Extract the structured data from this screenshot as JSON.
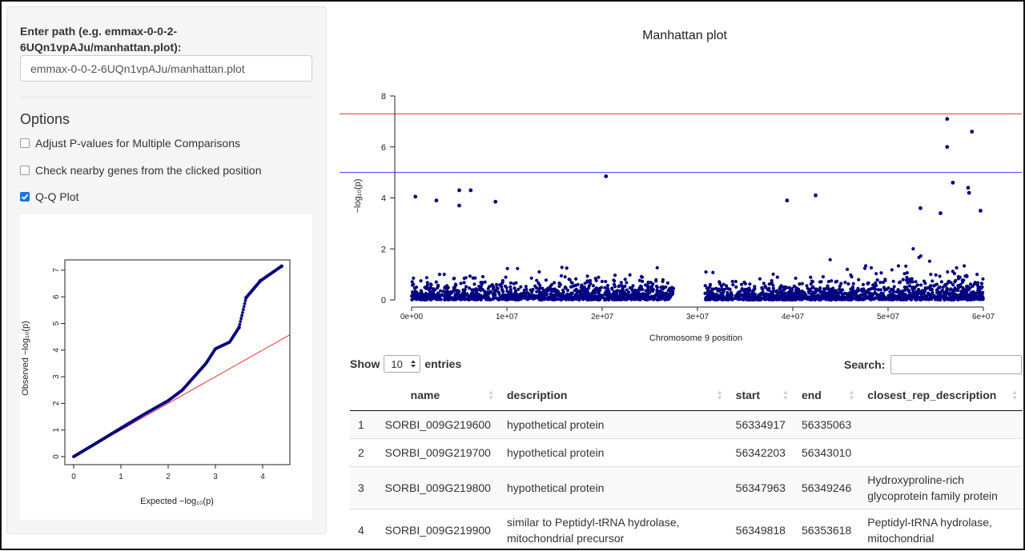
{
  "sidebar": {
    "path_label": "Enter path (e.g. emmax-0-0-2-6UQn1vpAJu/manhattan.plot):",
    "path_value": "emmax-0-0-2-6UQn1vpAJu/manhattan.plot",
    "options_title": "Options",
    "options": [
      {
        "label": "Adjust P-values for Multiple Comparisons",
        "checked": false
      },
      {
        "label": "Check nearby genes from the clicked position",
        "checked": false
      },
      {
        "label": "Q-Q Plot",
        "checked": true
      }
    ]
  },
  "qq_plot": {
    "xlabel": "Expected  −log₁₀(p)",
    "ylabel": "Observed  −log₁₀(p)",
    "x_ticks": [
      "0",
      "1",
      "2",
      "3",
      "4"
    ],
    "y_ticks": [
      "0",
      "1",
      "2",
      "3",
      "4",
      "5",
      "6",
      "7"
    ],
    "line_color": "#e3342f",
    "point_color": "#000080"
  },
  "manhattan": {
    "title": "Manhattan plot",
    "xlabel": "Chromosome 9 position",
    "ylabel": "−log₁₀(p)",
    "x_ticks": [
      "0e+00",
      "1e+07",
      "2e+07",
      "3e+07",
      "4e+07",
      "5e+07",
      "6e+07"
    ],
    "y_ticks": [
      "0",
      "2",
      "4",
      "6",
      "8"
    ],
    "thresholds": [
      {
        "value": 7.3,
        "color": "#e3342f"
      },
      {
        "value": 5.0,
        "color": "#3b3bf5"
      }
    ],
    "point_color": "#000080"
  },
  "chart_data": [
    {
      "type": "scatter",
      "title": "Manhattan plot",
      "xlabel": "Chromosome 9 position",
      "ylabel": "−log10(p)",
      "xlim": [
        0,
        60000000
      ],
      "ylim": [
        0,
        8
      ],
      "reference_lines": [
        7.3,
        5.0
      ],
      "highlighted_points": [
        {
          "x": 56200000,
          "y": 7.1
        },
        {
          "x": 58800000,
          "y": 6.6
        },
        {
          "x": 56200000,
          "y": 6.0
        },
        {
          "x": 20400000,
          "y": 4.85
        },
        {
          "x": 56800000,
          "y": 4.6
        },
        {
          "x": 42400000,
          "y": 4.1
        },
        {
          "x": 58400000,
          "y": 4.4
        },
        {
          "x": 58500000,
          "y": 4.2
        },
        {
          "x": 5000000,
          "y": 4.3
        },
        {
          "x": 6200000,
          "y": 4.3
        },
        {
          "x": 400000,
          "y": 4.05
        },
        {
          "x": 2600000,
          "y": 3.9
        },
        {
          "x": 39400000,
          "y": 3.9
        },
        {
          "x": 8800000,
          "y": 3.85
        },
        {
          "x": 5000000,
          "y": 3.7
        },
        {
          "x": 53400000,
          "y": 3.6
        },
        {
          "x": 59700000,
          "y": 3.5
        },
        {
          "x": 55500000,
          "y": 3.4
        }
      ]
    },
    {
      "type": "scatter",
      "title": "",
      "xlabel": "Expected −log10(p)",
      "ylabel": "Observed −log10(p)",
      "xlim": [
        0,
        4.5
      ],
      "ylim": [
        0,
        7.5
      ],
      "reference_line": {
        "slope": 1,
        "intercept": 0
      },
      "points": [
        {
          "x": 4.4,
          "y": 7.15
        },
        {
          "x": 3.95,
          "y": 6.6
        },
        {
          "x": 3.65,
          "y": 5.97
        },
        {
          "x": 3.5,
          "y": 4.85
        },
        {
          "x": 3.3,
          "y": 4.3
        },
        {
          "x": 3.0,
          "y": 4.05
        },
        {
          "x": 2.8,
          "y": 3.5
        },
        {
          "x": 2.6,
          "y": 3.1
        },
        {
          "x": 2.3,
          "y": 2.5
        },
        {
          "x": 2.0,
          "y": 2.1
        },
        {
          "x": 1.5,
          "y": 1.6
        },
        {
          "x": 1.0,
          "y": 1.07
        },
        {
          "x": 0.5,
          "y": 0.53
        },
        {
          "x": 0.0,
          "y": 0.0
        }
      ]
    }
  ],
  "table": {
    "show_label": "Show",
    "entries_label": "entries",
    "page_length": "10",
    "search_label": "Search:",
    "columns": [
      "",
      "name",
      "description",
      "start",
      "end",
      "closest_rep_description"
    ],
    "rows": [
      [
        "1",
        "SORBI_009G219600",
        "hypothetical protein",
        "56334917",
        "56335063",
        ""
      ],
      [
        "2",
        "SORBI_009G219700",
        "hypothetical protein",
        "56342203",
        "56343010",
        ""
      ],
      [
        "3",
        "SORBI_009G219800",
        "hypothetical protein",
        "56347963",
        "56349246",
        "Hydroxyproline-rich glycoprotein family protein"
      ],
      [
        "4",
        "SORBI_009G219900",
        "similar to Peptidyl-tRNA hydrolase, mitochondrial precursor",
        "56349818",
        "56353618",
        "Peptidyl-tRNA hydrolase, mitochondrial"
      ]
    ]
  }
}
